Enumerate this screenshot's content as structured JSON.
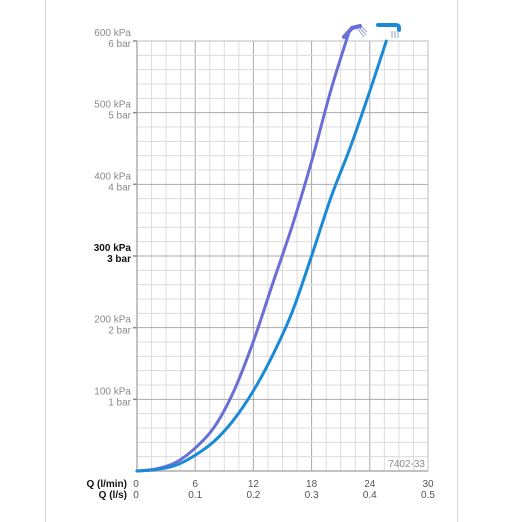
{
  "chart_data": {
    "type": "line",
    "code_label": "7402-33",
    "x_axes": [
      {
        "label": "Q (l/min)",
        "ticks": [
          "0",
          "6",
          "12",
          "18",
          "24",
          "30"
        ]
      },
      {
        "label": "Q (l/s)",
        "ticks": [
          "0",
          "0.1",
          "0.2",
          "0.3",
          "0.4",
          "0.5"
        ]
      }
    ],
    "y_ticks": [
      {
        "kpa": "100 kPa",
        "bar": "1 bar",
        "value": 100,
        "bold": false
      },
      {
        "kpa": "200 kPa",
        "bar": "2 bar",
        "value": 200,
        "bold": false
      },
      {
        "kpa": "300 kPa",
        "bar": "3 bar",
        "value": 300,
        "bold": true
      },
      {
        "kpa": "400 kPa",
        "bar": "4 bar",
        "value": 400,
        "bold": false
      },
      {
        "kpa": "500 kPa",
        "bar": "5 bar",
        "value": 500,
        "bold": false
      },
      {
        "kpa": "600 kPa",
        "bar": "6 bar",
        "value": 600,
        "bold": false
      }
    ],
    "xlim": [
      0,
      30
    ],
    "ylim": [
      0,
      600
    ],
    "grid": true,
    "series": [
      {
        "icon": "hand-shower-icon",
        "color": "#6a6fd6",
        "x": [
          0,
          2,
          4,
          6,
          8,
          10,
          12,
          14,
          16,
          18,
          20,
          21.8
        ],
        "y": [
          0,
          3,
          12,
          32,
          62,
          112,
          181,
          262,
          342,
          432,
          532,
          610
        ]
      },
      {
        "icon": "fixed-shower-icon",
        "color": "#1a8ad6",
        "x": [
          0,
          2,
          4,
          6,
          8,
          10,
          12,
          14,
          16,
          18,
          20,
          22,
          24,
          25.7
        ],
        "y": [
          0,
          2,
          8,
          22,
          42,
          72,
          112,
          162,
          222,
          300,
          382,
          452,
          530,
          600
        ]
      }
    ]
  }
}
